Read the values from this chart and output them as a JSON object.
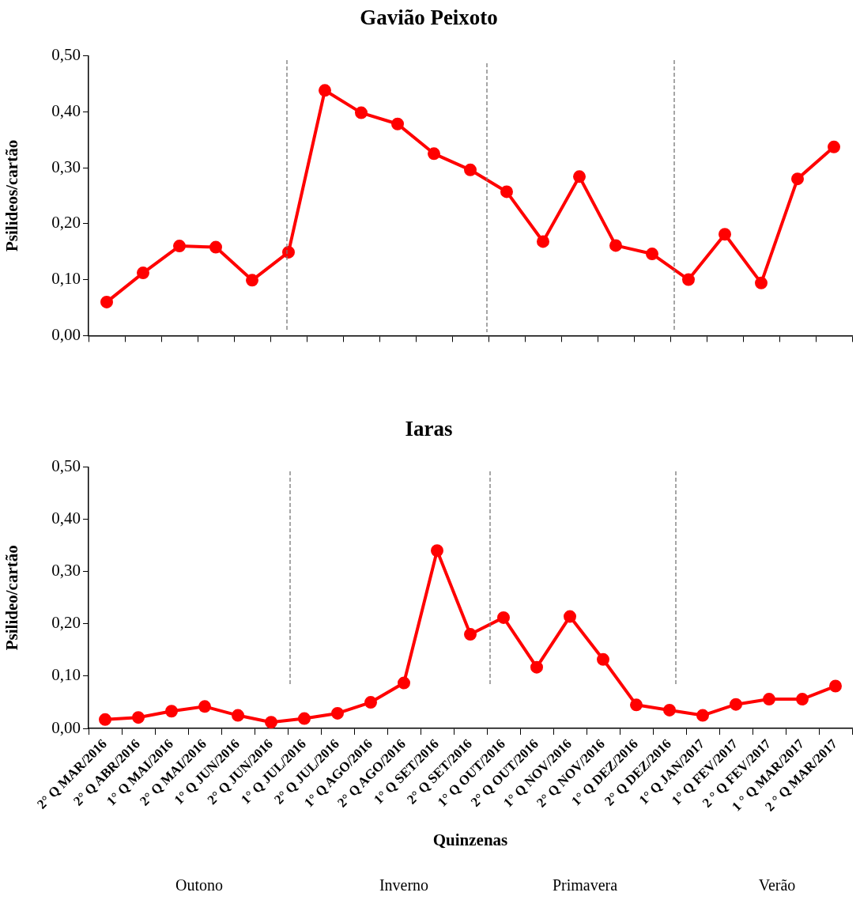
{
  "chart_data": [
    {
      "type": "line",
      "title": "Gavião Peixoto",
      "ylabel": "Psilideos/cartão",
      "categories": [
        null,
        null,
        null,
        null,
        null,
        null,
        null,
        null,
        null,
        null,
        null,
        null,
        null,
        null,
        null,
        null,
        null,
        null,
        null,
        null,
        null
      ],
      "series": [
        {
          "color": "#ff0000",
          "values": [
            0.06,
            0.112,
            0.16,
            0.158,
            0.099,
            0.149,
            0.438,
            0.398,
            0.378,
            0.325,
            0.296,
            0.257,
            0.168,
            0.284,
            0.161,
            0.146,
            0.1,
            0.181,
            0.094,
            0.28,
            0.337
          ]
        }
      ],
      "ylim": [
        0,
        0.5
      ],
      "yticks": [
        {
          "value": 0,
          "label": "0,00"
        },
        {
          "value": 0.1,
          "label": "0,10"
        },
        {
          "value": 0.2,
          "label": "0,20"
        },
        {
          "value": 0.3,
          "label": "0,30"
        },
        {
          "value": 0.4,
          "label": "0,40"
        },
        {
          "value": 0.5,
          "label": "0,50"
        }
      ],
      "tick_labels": "y",
      "marker": "circle",
      "line_style": "solid",
      "grid": false
    },
    {
      "type": "line",
      "title": "Iaras",
      "ylabel": "Psilideo/cartão",
      "xlabel": "Quinzenas",
      "categories": [
        "2° Q MAR/2016",
        "2° Q ABR/2016",
        "1° Q MAI/2016",
        "2° Q MAI/2016",
        "1° Q JUN/2016",
        "2° Q JUN/2016",
        "1° Q JUL/2016",
        "2° Q JUL/2016",
        "1° Q AGO/2016",
        "2° Q AGO/2016",
        "1° Q SET/2016",
        "2° Q SET/2016",
        "1° Q OUT/2016",
        "2° Q OUT/2016",
        "1° Q NOV/2016",
        "2° Q NOV/2016",
        "1° Q DEZ/2016",
        "2° Q DEZ/2016",
        "1° Q JAN/2017",
        "1° Q FEV/2017",
        "2 ° Q FEV/2017",
        "1 ° Q MAR/2017",
        "2 ° Q MAR/2017"
      ],
      "series": [
        {
          "color": "#ff0000",
          "values": [
            0.017,
            0.021,
            0.033,
            0.042,
            0.025,
            0.012,
            0.019,
            0.029,
            0.05,
            0.087,
            0.34,
            0.18,
            0.212,
            0.117,
            0.214,
            0.132,
            0.045,
            0.035,
            0.025,
            0.046,
            0.056,
            0.056,
            0.081
          ]
        }
      ],
      "ylim": [
        0,
        0.5
      ],
      "yticks": [
        {
          "value": 0,
          "label": "0,00"
        },
        {
          "value": 0.1,
          "label": "0,10"
        },
        {
          "value": 0.2,
          "label": "0,20"
        },
        {
          "value": 0.3,
          "label": "0,30"
        },
        {
          "value": 0.4,
          "label": "0,40"
        },
        {
          "value": 0.5,
          "label": "0,50"
        }
      ],
      "marker": "circle",
      "line_style": "solid",
      "grid": false,
      "annotations": [
        "Outono",
        "Inverno",
        "Primavera",
        "Verão"
      ]
    }
  ]
}
